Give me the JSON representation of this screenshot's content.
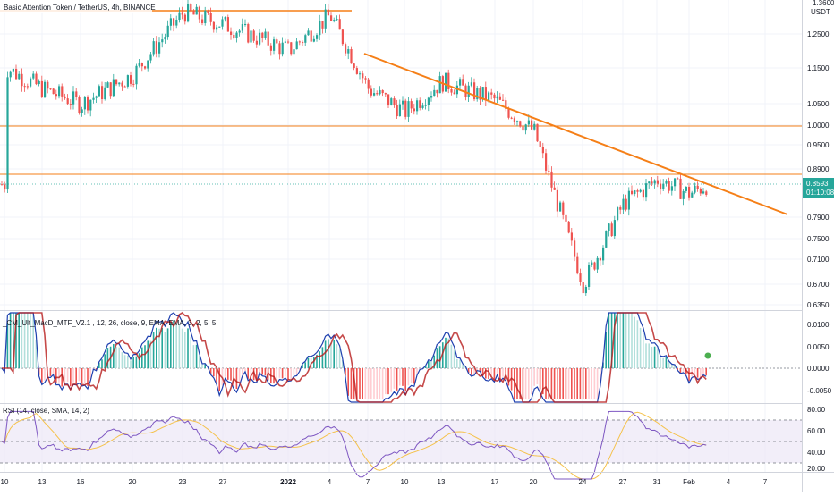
{
  "colors": {
    "up": "#26a69a",
    "down": "#ef5350",
    "orange": "#f57f17",
    "rsi_line": "#7e57c2",
    "rsi_ma": "#f5c24c",
    "rsi_band": "#ede7f6",
    "macd_up_strong": "#26a69a",
    "macd_up_weak": "#b2dfdb",
    "macd_down_strong": "#ef5350",
    "macd_down_weak": "#ffcdd2",
    "macd_line": "#1e40af",
    "signal_up": "#2e9e44",
    "signal_down": "#b71c1c",
    "grid": "#f0f3fa",
    "price_badge": "#26a69a"
  },
  "header": {
    "title": "Basic Attention Token / TetherUS, 4h, BINANCE"
  },
  "price_axis": {
    "currency": "USDT",
    "top_tick": "1.3600",
    "ticks": [
      "1.2500",
      "1.1500",
      "1.0500",
      "1.0000",
      "0.9500",
      "0.8900",
      "0.7900",
      "0.7500",
      "0.7100",
      "0.6700",
      "0.6350"
    ],
    "current_price": "0.8593",
    "countdown": "01:10:08"
  },
  "macd": {
    "label": "_CM_Ult_MacD_MTF_V2.1 , 12, 26, close, 9, EMA, EMA, 3, 2, 5, 5",
    "ticks": [
      "0.0100",
      "0.0050",
      "0.0000",
      "-0.0050"
    ]
  },
  "rsi": {
    "label": "RSI (14, close, SMA, 14, 2)",
    "ticks": [
      "80.00",
      "60.00",
      "40.00",
      "20.00"
    ]
  },
  "time_axis": {
    "labels": [
      "10",
      "13",
      "16",
      "20",
      "23",
      "27",
      "2022",
      "4",
      "7",
      "10",
      "13",
      "17",
      "20",
      "24",
      "27",
      "31",
      "Feb",
      "4",
      "7"
    ]
  },
  "chart_data": {
    "type": "candlestick",
    "symbol": "Basic Attention Token / TetherUS",
    "interval": "4h",
    "exchange": "BINANCE",
    "y_scale": "log",
    "current_price": 0.8593,
    "horizontal_levels": [
      1.328,
      0.997,
      0.888
    ],
    "trendline": {
      "start": {
        "x": "7",
        "y": 1.19
      },
      "end": {
        "x": "7 Feb",
        "y": 0.8
      }
    },
    "indicators": [
      "_CM_Ult_MacD_MTF_V2.1",
      "RSI (14, close, SMA, 14, 2)"
    ],
    "rsi_levels": [
      70,
      50,
      30
    ],
    "price_path": [
      {
        "x": "10",
        "y": 1.15
      },
      {
        "x": "13",
        "y": 1.09
      },
      {
        "x": "16",
        "y": 1.05
      },
      {
        "x": "20",
        "y": 1.13
      },
      {
        "x": "23",
        "y": 1.32
      },
      {
        "x": "27",
        "y": 1.28
      },
      {
        "x": "2022",
        "y": 1.2
      },
      {
        "x": "4",
        "y": 1.31
      },
      {
        "x": "7",
        "y": 1.09
      },
      {
        "x": "10",
        "y": 1.03
      },
      {
        "x": "13",
        "y": 1.11
      },
      {
        "x": "17",
        "y": 1.06
      },
      {
        "x": "20",
        "y": 0.98
      },
      {
        "x": "24",
        "y": 0.67
      },
      {
        "x": "27",
        "y": 0.82
      },
      {
        "x": "31",
        "y": 0.87
      },
      {
        "x": "Feb",
        "y": 0.84
      },
      {
        "x": "Feb",
        "y": 0.8593
      }
    ]
  }
}
